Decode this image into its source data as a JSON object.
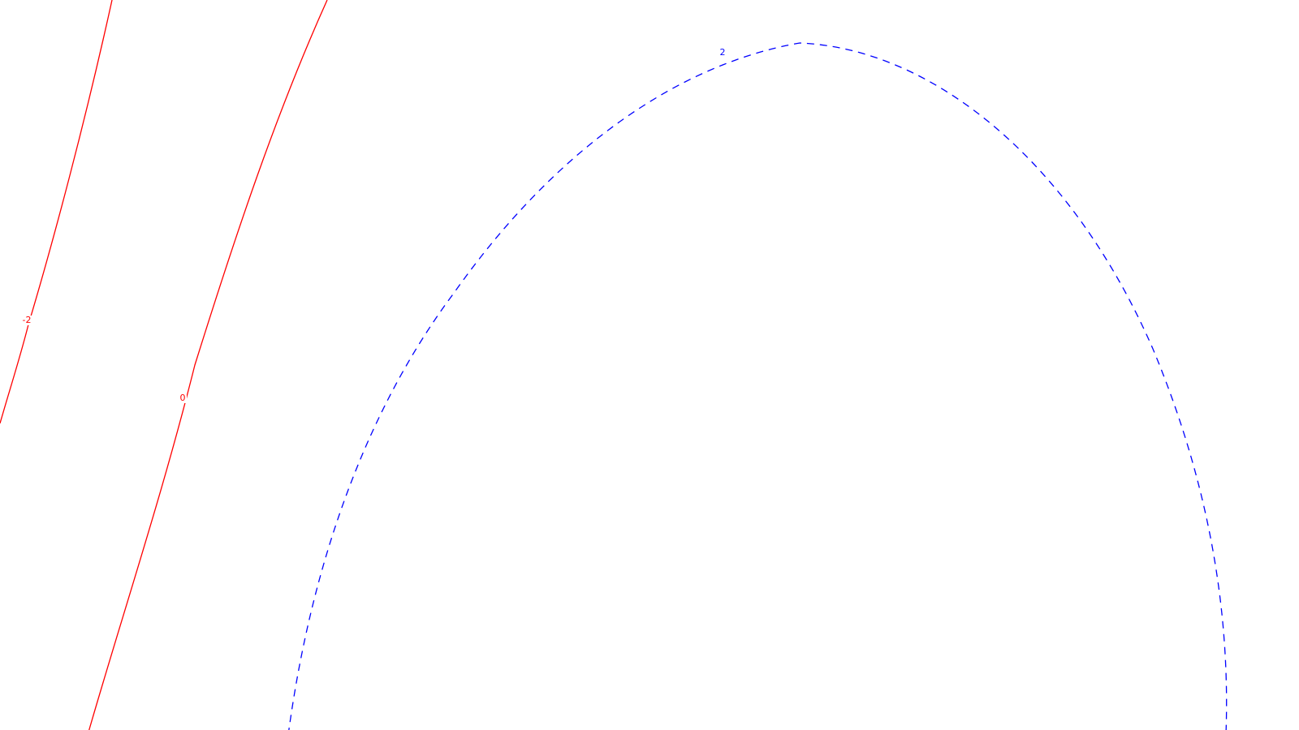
{
  "chart_data": {
    "type": "contour",
    "title": "",
    "xlabel": "",
    "ylabel": "",
    "grid": false,
    "legend": "none",
    "contours": [
      {
        "level": "-2",
        "color": "#ff0000",
        "line_style": "solid",
        "label": "-2"
      },
      {
        "level": "0",
        "color": "#ff0000",
        "line_style": "solid",
        "label": "0"
      },
      {
        "level": "2",
        "color": "#0000ff",
        "line_style": "dashed",
        "label": "2"
      }
    ]
  }
}
